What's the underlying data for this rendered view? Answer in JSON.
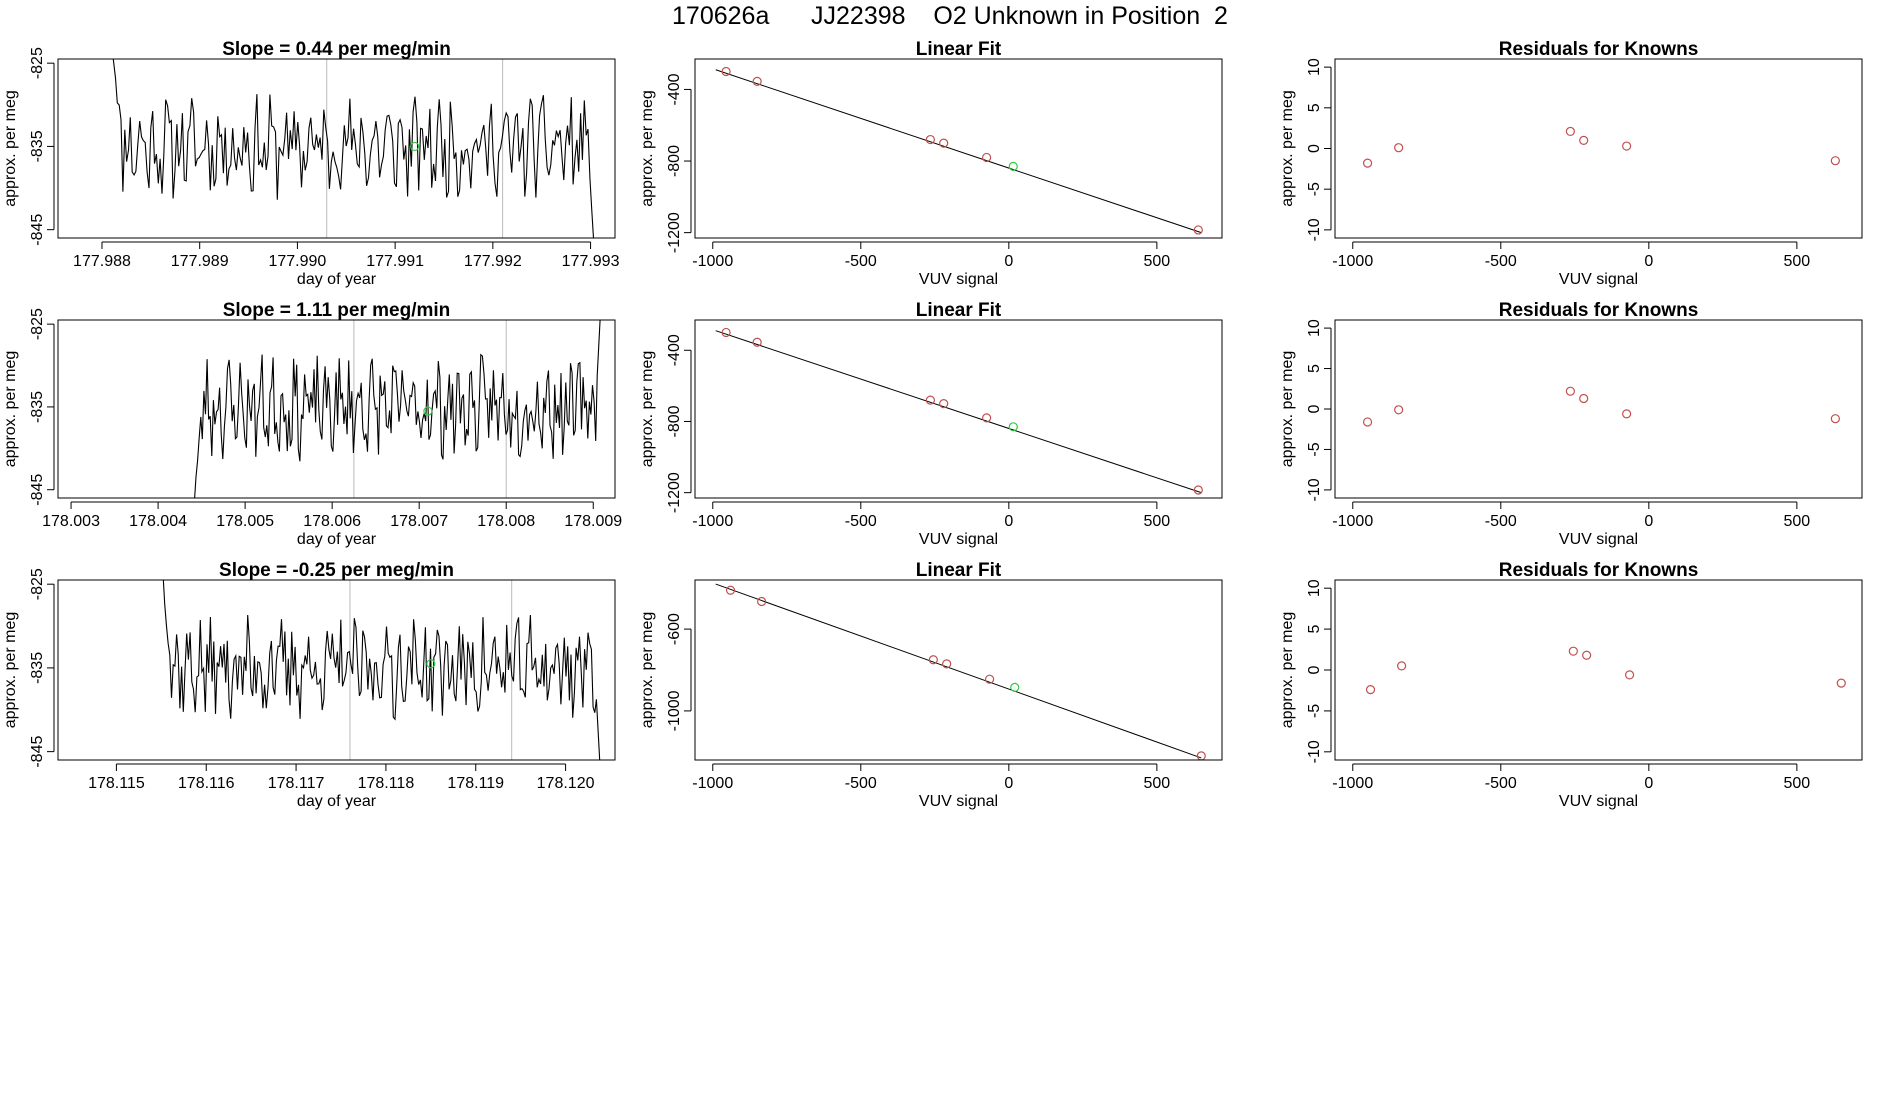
{
  "page": {
    "title": "170626a      JJ22398    O2 Unknown in Position  2"
  },
  "colors": {
    "series_line": "#000000",
    "known_points": "#c0504d",
    "unknown_point": "#2ecc40",
    "frame": "#000000",
    "vline": "#bbbbbb"
  },
  "chart_data": [
    {
      "type": "line",
      "panel": "timeseries-1",
      "title": "Slope =  0.44  per meg/min",
      "xlabel": "day of year",
      "ylabel": "approx. per meg",
      "xlim": [
        177.98755,
        177.99325
      ],
      "ylim": [
        -846,
        -824.5
      ],
      "xticks": [
        177.988,
        177.989,
        177.99,
        177.991,
        177.992,
        177.993
      ],
      "xtick_labels": [
        "177.988",
        "177.989",
        "177.990",
        "177.991",
        "177.992",
        "177.993"
      ],
      "yticks": [
        -825,
        -835,
        -845
      ],
      "ytick_labels": [
        "-825",
        "-835",
        "-845"
      ],
      "vlines": [
        177.9903,
        177.9921
      ],
      "series_x_range": [
        177.9881,
        177.99305
      ],
      "series_start": -822,
      "series_end": -850,
      "seed": 11,
      "unknown_point": {
        "x": 177.9912,
        "y": -835
      }
    },
    {
      "type": "scatter",
      "panel": "linear-fit-1",
      "title": "Linear Fit",
      "xlabel": "VUV signal",
      "ylabel": "approx. per meg",
      "xlim": [
        -1060,
        720
      ],
      "ylim": [
        -1230,
        -230
      ],
      "xticks": [
        -1000,
        -500,
        0,
        500
      ],
      "xtick_labels": [
        "-1000",
        "-500",
        "0",
        "500"
      ],
      "yticks": [
        -400,
        -800,
        -1200
      ],
      "ytick_labels": [
        "-400",
        "-800",
        "-1200"
      ],
      "fit_line": {
        "x": [
          -990,
          650
        ],
        "y": [
          -290,
          -1200
        ]
      },
      "known_x": [
        -955,
        -850,
        -265,
        -220,
        -75,
        640
      ],
      "known_y": [
        -300,
        -355,
        -680,
        -700,
        -780,
        -1185
      ],
      "unknown": {
        "x": 15,
        "y": -830
      }
    },
    {
      "type": "scatter",
      "panel": "residuals-1",
      "title": "Residuals for Knowns",
      "xlabel": "VUV signal",
      "ylabel": "approx. per meg",
      "xlim": [
        -1060,
        720
      ],
      "ylim": [
        -11,
        11
      ],
      "xticks": [
        -1000,
        -500,
        0,
        500
      ],
      "xtick_labels": [
        "-1000",
        "-500",
        "0",
        "500"
      ],
      "yticks": [
        10,
        5,
        0,
        -5,
        -10
      ],
      "ytick_labels": [
        "10",
        "5",
        "0",
        "-5",
        "-10"
      ],
      "x": [
        -950,
        -845,
        -265,
        -220,
        -75,
        630
      ],
      "y": [
        -1.8,
        0.1,
        2.1,
        1.0,
        0.3,
        -1.5
      ]
    },
    {
      "type": "line",
      "panel": "timeseries-2",
      "title": "Slope =  1.11  per meg/min",
      "xlabel": "day of year",
      "ylabel": "approx. per meg",
      "xlim": [
        178.00285,
        178.00925
      ],
      "ylim": [
        -846,
        -824.5
      ],
      "xticks": [
        178.003,
        178.004,
        178.005,
        178.006,
        178.007,
        178.008,
        178.009
      ],
      "xtick_labels": [
        "178.003",
        "178.004",
        "178.005",
        "178.006",
        "178.007",
        "178.008",
        "178.009"
      ],
      "yticks": [
        -825,
        -835,
        -845
      ],
      "ytick_labels": [
        "-825",
        "-835",
        "-845"
      ],
      "vlines": [
        178.00625,
        178.008
      ],
      "series_x_range": [
        178.0044,
        178.0091
      ],
      "series_start": -848,
      "series_end": -820,
      "seed": 23,
      "unknown_point": {
        "x": 178.0071,
        "y": -835.5
      }
    },
    {
      "type": "scatter",
      "panel": "linear-fit-2",
      "title": "Linear Fit",
      "xlabel": "VUV signal",
      "ylabel": "approx. per meg",
      "xlim": [
        -1060,
        720
      ],
      "ylim": [
        -1230,
        -230
      ],
      "xticks": [
        -1000,
        -500,
        0,
        500
      ],
      "xtick_labels": [
        "-1000",
        "-500",
        "0",
        "500"
      ],
      "yticks": [
        -400,
        -800,
        -1200
      ],
      "ytick_labels": [
        "-400",
        "-800",
        "-1200"
      ],
      "fit_line": {
        "x": [
          -990,
          650
        ],
        "y": [
          -290,
          -1200
        ]
      },
      "known_x": [
        -955,
        -850,
        -265,
        -220,
        -75,
        640
      ],
      "known_y": [
        -300,
        -355,
        -680,
        -700,
        -780,
        -1185
      ],
      "unknown": {
        "x": 15,
        "y": -830
      }
    },
    {
      "type": "scatter",
      "panel": "residuals-2",
      "title": "Residuals for Knowns",
      "xlabel": "VUV signal",
      "ylabel": "approx. per meg",
      "xlim": [
        -1060,
        720
      ],
      "ylim": [
        -11,
        11
      ],
      "xticks": [
        -1000,
        -500,
        0,
        500
      ],
      "xtick_labels": [
        "-1000",
        "-500",
        "0",
        "500"
      ],
      "yticks": [
        10,
        5,
        0,
        -5,
        -10
      ],
      "ytick_labels": [
        "10",
        "5",
        "0",
        "-5",
        "-10"
      ],
      "x": [
        -950,
        -845,
        -265,
        -220,
        -75,
        630
      ],
      "y": [
        -1.6,
        -0.1,
        2.2,
        1.3,
        -0.6,
        -1.2
      ]
    },
    {
      "type": "line",
      "panel": "timeseries-3",
      "title": "Slope =  -0.25  per meg/min",
      "xlabel": "day of year",
      "ylabel": "approx. per meg",
      "xlim": [
        178.11435,
        178.12055
      ],
      "ylim": [
        -846,
        -824.5
      ],
      "xticks": [
        178.115,
        178.116,
        178.117,
        178.118,
        178.119,
        178.12
      ],
      "xtick_labels": [
        "178.115",
        "178.116",
        "178.117",
        "178.118",
        "178.119",
        "178.120"
      ],
      "yticks": [
        -825,
        -835,
        -845
      ],
      "ytick_labels": [
        "-825",
        "-835",
        "-845"
      ],
      "vlines": [
        178.1176,
        178.1194
      ],
      "series_x_range": [
        178.1155,
        178.1204
      ],
      "series_start": -822,
      "series_end": -850,
      "seed": 37,
      "unknown_point": {
        "x": 178.1185,
        "y": -834.5
      }
    },
    {
      "type": "scatter",
      "panel": "linear-fit-3",
      "title": "Linear Fit",
      "xlabel": "VUV signal",
      "ylabel": "approx. per meg",
      "xlim": [
        -1060,
        720
      ],
      "ylim": [
        -1240,
        -360
      ],
      "xticks": [
        -1000,
        -500,
        0,
        500
      ],
      "xtick_labels": [
        "-1000",
        "-500",
        "0",
        "500"
      ],
      "yticks": [
        -600,
        -1000
      ],
      "ytick_labels": [
        "-600",
        "-1000"
      ],
      "fit_line": {
        "x": [
          -990,
          650
        ],
        "y": [
          -380,
          -1230
        ]
      },
      "known_x": [
        -940,
        -835,
        -255,
        -210,
        -65,
        650
      ],
      "known_y": [
        -410,
        -465,
        -750,
        -770,
        -845,
        -1220
      ],
      "unknown": {
        "x": 20,
        "y": -885
      }
    },
    {
      "type": "scatter",
      "panel": "residuals-3",
      "title": "Residuals for Knowns",
      "xlabel": "VUV signal",
      "ylabel": "approx. per meg",
      "xlim": [
        -1060,
        720
      ],
      "ylim": [
        -11,
        11
      ],
      "xticks": [
        -1000,
        -500,
        0,
        500
      ],
      "xtick_labels": [
        "-1000",
        "-500",
        "0",
        "500"
      ],
      "yticks": [
        10,
        5,
        0,
        -5,
        -10
      ],
      "ytick_labels": [
        "10",
        "5",
        "0",
        "-5",
        "-10"
      ],
      "x": [
        -940,
        -835,
        -255,
        -210,
        -65,
        650
      ],
      "y": [
        -2.4,
        0.5,
        2.3,
        1.8,
        -0.6,
        -1.6
      ]
    }
  ]
}
